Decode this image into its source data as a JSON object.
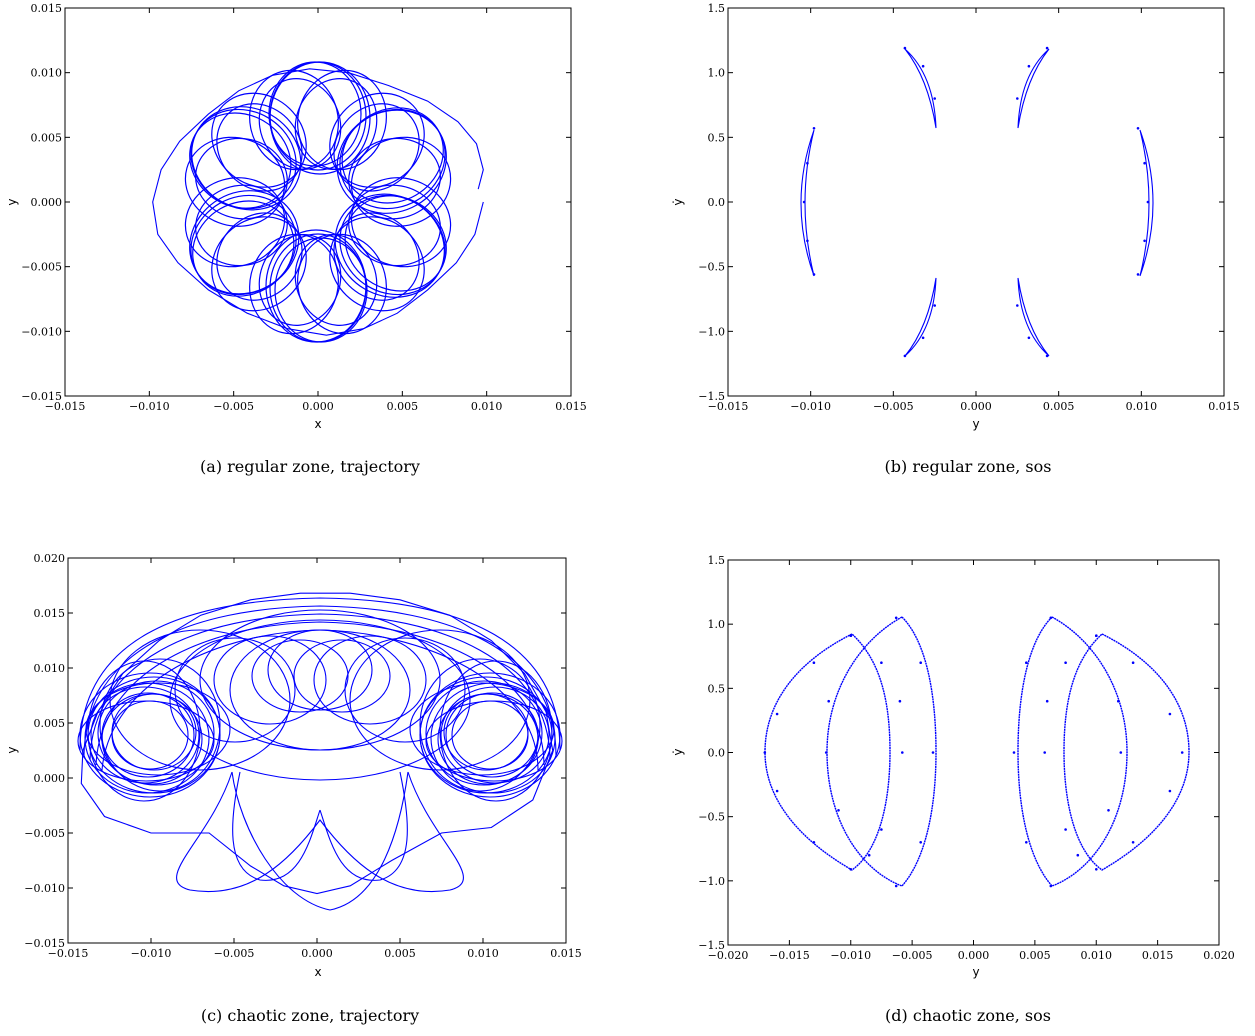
{
  "chart_data": [
    {
      "type": "line",
      "caption": "(a) regular zone, trajectory",
      "xlabel": "x",
      "ylabel": "y",
      "xlim": [
        -0.015,
        0.015
      ],
      "ylim": [
        -0.015,
        0.015
      ],
      "xticks": [
        "−0.015",
        "−0.010",
        "−0.005",
        "0.000",
        "0.005",
        "0.010",
        "0.015"
      ],
      "yticks": [
        "−0.015",
        "−0.010",
        "−0.005",
        "0.000",
        "0.005",
        "0.010",
        "0.015"
      ],
      "color": "#0000ff",
      "grid": false,
      "series": [
        {
          "x": [
            0.0095,
            0.0098,
            0.0094,
            0.0083,
            0.0065,
            0.0042,
            0.0018,
            -0.0005,
            -0.0027,
            -0.0047,
            -0.0065,
            -0.0082,
            -0.0093,
            -0.0098,
            -0.0095,
            -0.0083,
            -0.0065,
            -0.0042,
            -0.0018,
            0.0005,
            0.0027,
            0.0047,
            0.0065,
            0.0082,
            0.0093,
            0.0098
          ],
          "y": [
            0.001,
            0.0025,
            0.0045,
            0.0062,
            0.0078,
            0.009,
            0.01,
            0.0103,
            0.0098,
            0.0086,
            0.0068,
            0.0047,
            0.0025,
            0.0,
            -0.0025,
            -0.0047,
            -0.0068,
            -0.0086,
            -0.0098,
            -0.0103,
            -0.0098,
            -0.0086,
            -0.0068,
            -0.0047,
            -0.0025,
            0.0
          ]
        }
      ]
    },
    {
      "type": "scatter",
      "caption": "(b) regular zone, sos",
      "xlabel": "y",
      "ylabel": "ẏ",
      "xlim": [
        -0.015,
        0.015
      ],
      "ylim": [
        -1.5,
        1.5
      ],
      "xticks": [
        "−0.015",
        "−0.010",
        "−0.005",
        "0.000",
        "0.005",
        "0.010",
        "0.015"
      ],
      "yticks": [
        "−1.5",
        "−1.0",
        "−0.5",
        "0.0",
        "0.5",
        "1.0",
        "1.5"
      ],
      "color": "#0000ff",
      "grid": false,
      "series": [
        {
          "x": [
            -0.0098,
            -0.0102,
            -0.0104,
            -0.0102,
            -0.0098,
            0.0098,
            0.0102,
            0.0104,
            0.0102,
            0.0098,
            -0.0043,
            -0.0032,
            -0.0025,
            -0.0025,
            -0.0032,
            -0.0043,
            0.0043,
            0.0032,
            0.0025,
            0.0025,
            0.0032,
            0.0043
          ],
          "y": [
            0.57,
            0.3,
            0.0,
            -0.3,
            -0.56,
            0.57,
            0.3,
            0.0,
            -0.3,
            -0.56,
            1.19,
            1.05,
            0.8,
            -0.8,
            -1.05,
            -1.19,
            1.19,
            1.05,
            0.8,
            -0.8,
            -1.05,
            -1.19
          ]
        }
      ]
    },
    {
      "type": "line",
      "caption": "(c) chaotic zone, trajectory",
      "xlabel": "x",
      "ylabel": "y",
      "xlim": [
        -0.015,
        0.015
      ],
      "ylim": [
        -0.015,
        0.02
      ],
      "xticks": [
        "−0.015",
        "−0.010",
        "−0.005",
        "0.000",
        "0.005",
        "0.010",
        "0.015"
      ],
      "yticks": [
        "−0.015",
        "−0.010",
        "−0.005",
        "0.000",
        "0.005",
        "0.010",
        "0.015",
        "0.020"
      ],
      "color": "#0000ff",
      "grid": false,
      "series": [
        {
          "x": [
            0.0142,
            0.0138,
            0.0125,
            0.0105,
            0.008,
            0.005,
            0.002,
            -0.001,
            -0.004,
            -0.007,
            -0.0095,
            -0.0117,
            -0.0132,
            -0.0141,
            -0.0142,
            -0.0128,
            -0.01,
            -0.0065,
            -0.004,
            -0.002,
            0.0,
            0.002,
            0.0045,
            0.0075,
            0.0105,
            0.013,
            0.0142
          ],
          "y": [
            0.0025,
            0.006,
            0.0095,
            0.0125,
            0.0148,
            0.0162,
            0.0168,
            0.0168,
            0.0162,
            0.0148,
            0.0125,
            0.0095,
            0.006,
            0.0025,
            -0.0005,
            -0.0035,
            -0.005,
            -0.005,
            -0.008,
            -0.0098,
            -0.0105,
            -0.0098,
            -0.0075,
            -0.005,
            -0.0045,
            -0.002,
            0.0025
          ]
        }
      ]
    },
    {
      "type": "scatter",
      "caption": "(d) chaotic zone, sos",
      "xlabel": "y",
      "ylabel": "ẏ",
      "xlim": [
        -0.02,
        0.02
      ],
      "ylim": [
        -1.5,
        1.5
      ],
      "xticks": [
        "−0.020",
        "−0.015",
        "−0.010",
        "−0.005",
        "0.000",
        "0.005",
        "0.010",
        "0.015",
        "0.020"
      ],
      "yticks": [
        "−1.5",
        "−1.0",
        "−0.5",
        "0.0",
        "0.5",
        "1.0",
        "1.5"
      ],
      "color": "#0000ff",
      "grid": false,
      "series": [
        {
          "x": [
            -0.01,
            -0.013,
            -0.016,
            -0.017,
            -0.016,
            -0.013,
            -0.01,
            -0.0075,
            -0.0058,
            -0.006,
            -0.0075,
            -0.01,
            -0.0118,
            -0.012,
            -0.011,
            -0.0085,
            -0.0063,
            -0.0043,
            -0.0033,
            -0.0043,
            -0.0063,
            0.01,
            0.013,
            0.016,
            0.017,
            0.016,
            0.013,
            0.01,
            0.0075,
            0.0058,
            0.006,
            0.0075,
            0.01,
            0.0118,
            0.012,
            0.011,
            0.0085,
            0.0063,
            0.0043,
            0.0033,
            0.0043,
            0.0063
          ],
          "y": [
            0.91,
            0.7,
            0.3,
            0.0,
            -0.3,
            -0.7,
            -0.91,
            -0.6,
            0.0,
            0.4,
            0.7,
            0.91,
            0.4,
            0.0,
            -0.45,
            -0.8,
            -1.04,
            -0.7,
            0.0,
            0.7,
            1.05,
            0.91,
            0.7,
            0.3,
            0.0,
            -0.3,
            -0.7,
            -0.91,
            -0.6,
            0.0,
            0.4,
            0.7,
            0.91,
            0.4,
            0.0,
            -0.45,
            -0.8,
            -1.04,
            -0.7,
            0.0,
            0.7,
            1.05
          ]
        }
      ]
    }
  ]
}
